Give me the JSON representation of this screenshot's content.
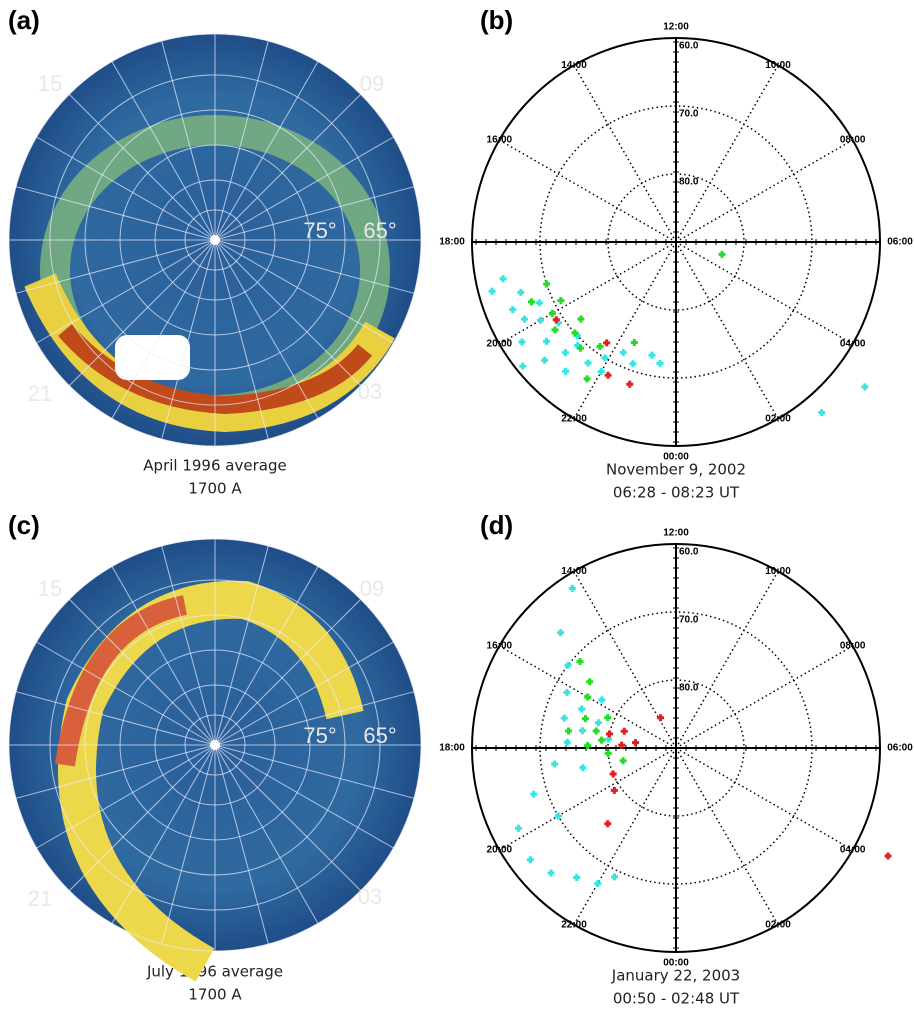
{
  "panels": [
    {
      "label": "(a)",
      "caption": [
        "April 1996 average",
        "1700 A"
      ],
      "image_labels": {
        "hours": [
          "15",
          "09",
          "21",
          "03"
        ],
        "latitudes": [
          "75°",
          "65°"
        ]
      }
    },
    {
      "label": "(b)",
      "caption": [
        "November 9, 2002",
        "06:28 - 08:23 UT"
      ],
      "hour_labels": [
        {
          "value": 0,
          "label": "00:00"
        },
        {
          "value": 2,
          "label": "02:00"
        },
        {
          "value": 4,
          "label": "04:00"
        },
        {
          "value": 6,
          "label": "06:00"
        },
        {
          "value": 8,
          "label": "08:00"
        },
        {
          "value": 10,
          "label": "10:00"
        },
        {
          "value": 12,
          "label": "12:00"
        },
        {
          "value": 14,
          "label": "14:00"
        },
        {
          "value": 16,
          "label": "16:00"
        },
        {
          "value": 18,
          "label": "18:00"
        },
        {
          "value": 20,
          "label": "20:00"
        },
        {
          "value": 22,
          "label": "22:00"
        }
      ],
      "lat_rings": [
        {
          "value": 60,
          "label": "60.0"
        },
        {
          "value": 70,
          "label": "70.0"
        },
        {
          "value": 80,
          "label": "80.0"
        }
      ],
      "series": [
        {
          "color": "#33e6e6",
          "mlt": [
            19.2,
            19.5,
            19.8,
            20,
            20.2,
            20.5,
            20.8,
            21,
            21.3,
            21.6,
            19.6,
            20.3,
            21.9,
            22.3,
            22.7,
            23.2,
            23.5,
            19,
            18.8,
            20.6,
            3.5,
            2.7,
            21.1,
            20.9,
            22
          ],
          "lat": [
            66,
            64,
            65,
            67,
            63,
            66,
            64,
            67,
            65,
            68,
            68,
            69,
            70,
            72,
            71,
            73,
            72,
            62,
            64,
            61,
            55,
            57,
            69,
            70,
            68
          ]
        },
        {
          "color": "#22dd22",
          "mlt": [
            19.5,
            20,
            20.4,
            20.8,
            21.2,
            21.6,
            19.2,
            19.8,
            20.6,
            22.5,
            5,
            21.8
          ],
          "lat": [
            67,
            69,
            68,
            70,
            69,
            71,
            70,
            71,
            72,
            74,
            83,
            66
          ]
        },
        {
          "color": "#e02020",
          "mlt": [
            20.2,
            21.7,
            22.2,
            22.8
          ],
          "lat": [
            69,
            72,
            68,
            68
          ]
        }
      ]
    },
    {
      "label": "(c)",
      "caption": [
        "July 1996 average",
        "1700 A"
      ],
      "image_labels": {
        "hours": [
          "15",
          "09",
          "21",
          "03"
        ],
        "latitudes": [
          "75°",
          "65°"
        ]
      }
    },
    {
      "label": "(d)",
      "caption": [
        "January 22, 2003",
        "00:50 - 02:48 UT"
      ],
      "hour_labels": [
        {
          "value": 0,
          "label": "00:00"
        },
        {
          "value": 2,
          "label": "02:00"
        },
        {
          "value": 4,
          "label": "04:00"
        },
        {
          "value": 6,
          "label": "06:00"
        },
        {
          "value": 8,
          "label": "08:00"
        },
        {
          "value": 10,
          "label": "10:00"
        },
        {
          "value": 12,
          "label": "12:00"
        },
        {
          "value": 14,
          "label": "14:00"
        },
        {
          "value": 16,
          "label": "16:00"
        },
        {
          "value": 18,
          "label": "18:00"
        },
        {
          "value": 20,
          "label": "20:00"
        },
        {
          "value": 22,
          "label": "22:00"
        }
      ],
      "lat_rings": [
        {
          "value": 60,
          "label": "60.0"
        },
        {
          "value": 70,
          "label": "70.0"
        },
        {
          "value": 80,
          "label": "80.0"
        }
      ],
      "series": [
        {
          "color": "#33e6e6",
          "mlt": [
            17,
            16.5,
            17.3,
            17.8,
            16.2,
            15,
            14.2,
            15.5,
            18.5,
            19.2,
            19.8,
            20.5,
            21,
            21.5,
            22,
            22.3,
            20,
            18.8,
            16.8,
            17.5,
            15.8
          ],
          "lat": [
            73,
            75,
            76,
            74,
            72,
            66,
            62,
            70,
            72,
            68,
            64,
            63,
            64,
            66,
            67,
            69,
            70,
            76,
            78,
            80,
            77
          ]
        },
        {
          "color": "#22dd22",
          "mlt": [
            16.8,
            17.2,
            17.6,
            16.4,
            15.5,
            17.9,
            18.3,
            15.2,
            18.9,
            17.4,
            16
          ],
          "lat": [
            76,
            78,
            79,
            79,
            74,
            77,
            80,
            71,
            82,
            74,
            75
          ]
        },
        {
          "color": "#e02020",
          "mlt": [
            17.2,
            17.8,
            16.8,
            17.5,
            19.5,
            20.3,
            21.2,
            13.8,
            4.2
          ],
          "lat": [
            80,
            82,
            82,
            84,
            80,
            79,
            75,
            85,
            55
          ]
        }
      ]
    }
  ]
}
